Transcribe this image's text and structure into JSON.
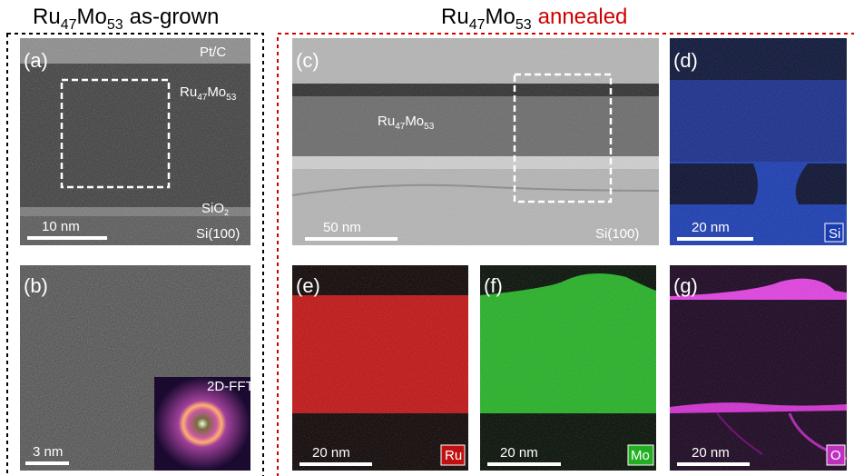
{
  "titles": {
    "left": {
      "formula": [
        "Ru",
        "47",
        "Mo",
        "53"
      ],
      "suffix": "as-grown"
    },
    "right": {
      "formula": [
        "Ru",
        "47",
        "Mo",
        "53"
      ],
      "suffix": "annealed"
    }
  },
  "panels": {
    "a": {
      "label": "(a)",
      "capping": "Pt/C",
      "film": [
        "Ru",
        "47",
        "Mo",
        "53"
      ],
      "oxide": [
        "SiO",
        "2"
      ],
      "substrate": "Si(100)",
      "scale_bar": "10 nm"
    },
    "b": {
      "label": "(b)",
      "scale_bar": "3 nm",
      "inset": "2D-FFT"
    },
    "c": {
      "label": "(c)",
      "film": [
        "Ru",
        "47",
        "Mo",
        "53"
      ],
      "scale_bar": "50 nm",
      "substrate": "Si(100)"
    },
    "d": {
      "label": "(d)",
      "scale_bar": "20 nm",
      "element": "Si"
    },
    "e": {
      "label": "(e)",
      "scale_bar": "20 nm",
      "element": "Ru"
    },
    "f": {
      "label": "(f)",
      "scale_bar": "20 nm",
      "element": "Mo"
    },
    "g": {
      "label": "(g)",
      "scale_bar": "20 nm",
      "element": "O"
    }
  }
}
